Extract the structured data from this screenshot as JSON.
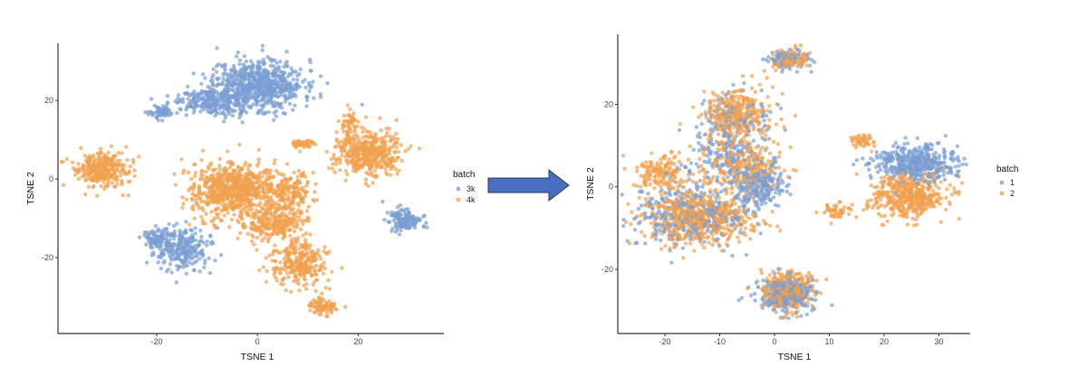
{
  "colors": {
    "batch_a": "#7b9ed3",
    "batch_b": "#f1a14f",
    "arrow": "#4a6fc0",
    "arrow_border": "#24386b"
  },
  "arrow": {
    "icon": "right-arrow-icon"
  },
  "chart_data": [
    {
      "type": "scatter",
      "xlabel": "TSNE 1",
      "ylabel": "TSNE 2",
      "xlim": [
        -39.6,
        37
      ],
      "ylim": [
        -39.3,
        34.5
      ],
      "xticks": [
        -20,
        0,
        20
      ],
      "yticks": [
        -20,
        0,
        20
      ],
      "grid": false,
      "legend": {
        "title": "batch",
        "placement": "right",
        "entries": [
          "3k",
          "4k"
        ]
      },
      "series": [
        {
          "name": "3k",
          "color": "#7b9ed3",
          "clusters": [
            {
              "x": 0,
              "y": 24,
              "sx": 4.5,
              "sy": 3.2,
              "n": 700
            },
            {
              "x": -9,
              "y": 19.5,
              "sx": 3.5,
              "sy": 1.6,
              "n": 220
            },
            {
              "x": -19,
              "y": 17,
              "sx": 1.3,
              "sy": 0.9,
              "n": 70
            },
            {
              "x": -15,
              "y": -18,
              "sx": 2.6,
              "sy": 2.6,
              "n": 260
            },
            {
              "x": -20,
              "y": -15,
              "sx": 1.3,
              "sy": 1.3,
              "n": 80
            },
            {
              "x": 29.5,
              "y": -10.5,
              "sx": 1.5,
              "sy": 1.4,
              "n": 150
            }
          ]
        },
        {
          "name": "4k",
          "color": "#f1a14f",
          "clusters": [
            {
              "x": -31,
              "y": 2.3,
              "sx": 2.8,
              "sy": 2.2,
              "n": 300
            },
            {
              "x": -4.5,
              "y": -3,
              "sx": 4.5,
              "sy": 3.5,
              "n": 750
            },
            {
              "x": 6.5,
              "y": -4,
              "sx": 2,
              "sy": 3,
              "n": 200
            },
            {
              "x": 3,
              "y": -12,
              "sx": 3,
              "sy": 2,
              "n": 220
            },
            {
              "x": 8,
              "y": -21,
              "sx": 2.5,
              "sy": 3,
              "n": 280
            },
            {
              "x": 13,
              "y": -32.5,
              "sx": 1.4,
              "sy": 1.2,
              "n": 80
            },
            {
              "x": 22,
              "y": 6.5,
              "sx": 3.2,
              "sy": 2.8,
              "n": 420
            },
            {
              "x": 18.3,
              "y": 13.5,
              "sx": 0.7,
              "sy": 2,
              "n": 60
            },
            {
              "x": 9,
              "y": 9,
              "sx": 1.3,
              "sy": 0.5,
              "n": 50
            }
          ]
        }
      ]
    },
    {
      "type": "scatter",
      "xlabel": "TSNE 1",
      "ylabel": "TSNE 2",
      "xlim": [
        -28.6,
        35.7
      ],
      "ylim": [
        -35.6,
        37
      ],
      "xticks": [
        -20,
        -10,
        0,
        10,
        20,
        30
      ],
      "yticks": [
        -20,
        0,
        20
      ],
      "grid": false,
      "legend": {
        "title": "batch",
        "placement": "right",
        "entries": [
          "1",
          "2"
        ]
      },
      "series": [
        {
          "name": "1",
          "color": "#7b9ed3",
          "clusters": [
            {
              "x": 2,
              "y": 31,
              "sx": 2,
              "sy": 1.2,
              "n": 80
            },
            {
              "x": -8,
              "y": 16,
              "sx": 3.5,
              "sy": 3.5,
              "n": 150
            },
            {
              "x": -15,
              "y": -7,
              "sx": 5.5,
              "sy": 3.8,
              "n": 350
            },
            {
              "x": -2.5,
              "y": 0.5,
              "sx": 2,
              "sy": 2.5,
              "n": 200
            },
            {
              "x": -9,
              "y": 6,
              "sx": 4,
              "sy": 3,
              "n": 150
            },
            {
              "x": 26,
              "y": 5.5,
              "sx": 4,
              "sy": 2.2,
              "n": 450
            },
            {
              "x": 2,
              "y": -26,
              "sx": 2.6,
              "sy": 2.3,
              "n": 280
            }
          ]
        },
        {
          "name": "2",
          "color": "#f1a14f",
          "clusters": [
            {
              "x": 3,
              "y": 31,
              "sx": 1.8,
              "sy": 1.2,
              "n": 110
            },
            {
              "x": -7,
              "y": 17.5,
              "sx": 3.2,
              "sy": 3.2,
              "n": 320
            },
            {
              "x": -14,
              "y": -7.5,
              "sx": 4.8,
              "sy": 3.2,
              "n": 600
            },
            {
              "x": -21,
              "y": 3.5,
              "sx": 2.2,
              "sy": 2,
              "n": 150
            },
            {
              "x": -6,
              "y": 5,
              "sx": 4,
              "sy": 3,
              "n": 250
            },
            {
              "x": 24.5,
              "y": -2,
              "sx": 3.5,
              "sy": 2.6,
              "n": 450
            },
            {
              "x": 16,
              "y": 11,
              "sx": 1.2,
              "sy": 0.8,
              "n": 50
            },
            {
              "x": 11.5,
              "y": -6,
              "sx": 1.3,
              "sy": 1,
              "n": 50
            },
            {
              "x": 2.3,
              "y": -25.5,
              "sx": 2.2,
              "sy": 2.3,
              "n": 330
            }
          ]
        }
      ]
    }
  ]
}
